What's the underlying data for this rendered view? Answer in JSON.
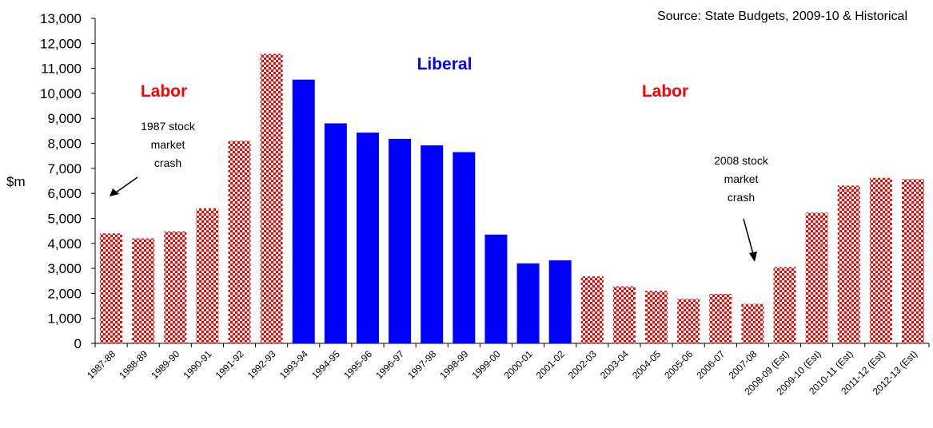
{
  "chart_data": {
    "type": "bar",
    "source": "Source: State Budgets, 2009-10 & Historical",
    "ylabel": "$m",
    "ylim": [
      0,
      13000
    ],
    "ytick_step": 1000,
    "grid": false,
    "categories": [
      "1987-88",
      "1988-89",
      "1989-90",
      "1990-91",
      "1991-92",
      "1992-93",
      "1993-94",
      "1994-95",
      "1995-96",
      "1996-97",
      "1997-98",
      "1998-99",
      "1999-00",
      "2000-01",
      "2001-02",
      "2002-03",
      "2003-04",
      "2004-05",
      "2005-06",
      "2006-07",
      "2007-08",
      "2008-09 (Est)",
      "2009-10 (Est)",
      "2010-11 (Est)",
      "2011-12 (Est)",
      "2012-13 (Est)"
    ],
    "values": [
      4400,
      4200,
      4480,
      5400,
      8100,
      11580,
      10550,
      8800,
      8430,
      8180,
      7920,
      7650,
      4350,
      3200,
      3320,
      2680,
      2280,
      2100,
      1780,
      1980,
      1580,
      3050,
      5230,
      6310,
      6620,
      6570
    ],
    "party": [
      "Labor",
      "Labor",
      "Labor",
      "Labor",
      "Labor",
      "Labor",
      "Liberal",
      "Liberal",
      "Liberal",
      "Liberal",
      "Liberal",
      "Liberal",
      "Liberal",
      "Liberal",
      "Liberal",
      "Labor",
      "Labor",
      "Labor",
      "Labor",
      "Labor",
      "Labor",
      "Labor",
      "Labor",
      "Labor",
      "Labor",
      "Labor"
    ],
    "colors": {
      "Labor": "#ff0000",
      "Liberal": "#0000ff"
    },
    "period_labels": [
      {
        "text": "Labor",
        "color": "#ff0000"
      },
      {
        "text": "Liberal",
        "color": "#0000ff"
      },
      {
        "text": "Labor",
        "color": "#ff0000"
      }
    ],
    "annotations": [
      {
        "lines": [
          "1987 stock",
          "market",
          "crash"
        ]
      },
      {
        "lines": [
          "2008 stock",
          "market",
          "crash"
        ]
      }
    ]
  }
}
